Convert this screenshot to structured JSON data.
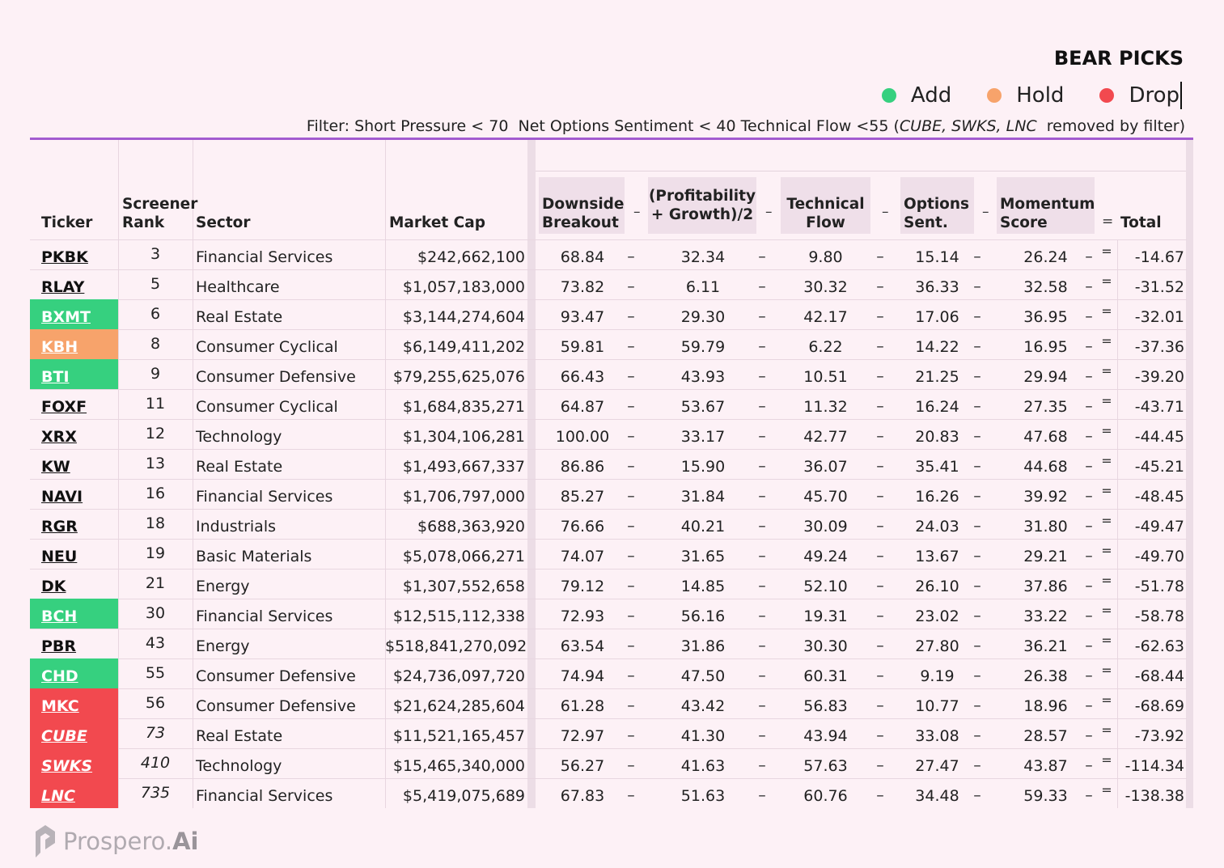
{
  "header": {
    "title": "BEAR PICKS",
    "legend": [
      {
        "label": "Add",
        "color": "#36d07f"
      },
      {
        "label": "Hold",
        "color": "#f7a36b"
      },
      {
        "label": "Drop",
        "color": "#f2494f"
      }
    ],
    "filter_prefix": "Filter: Short Pressure < 70  Net Options Sentiment < 40 Technical Flow <55 (",
    "filter_removed": "CUBE, SWKS, LNC",
    "filter_suffix": "  removed by filter)"
  },
  "columns": {
    "ticker": "Ticker",
    "rank_l1": "Screener",
    "rank_l2": "Rank",
    "sector": "Sector",
    "mcap": "Market Cap",
    "downside_l1": "Downside",
    "downside_l2": "Breakout",
    "profit_l1": "(Profitability",
    "profit_l2": "+ Growth)/2",
    "tech_l1": "Technical",
    "tech_l2": "Flow",
    "options_l1": "Options",
    "options_l2": "Sent.",
    "momentum_l1": "Momentum",
    "momentum_l2": "Score",
    "total": "Total",
    "minus": "–",
    "equals": "="
  },
  "status_colors": {
    "add": "#36d07f",
    "hold": "#f7a36b",
    "drop": "#f2494f"
  },
  "rows": [
    {
      "ticker": "PKBK",
      "status": "none",
      "rank": "3",
      "sector": "Financial Services",
      "mcap": "$242,662,100",
      "downside": "68.84",
      "profit": "32.34",
      "tech": "9.80",
      "options": "15.14",
      "momentum": "26.24",
      "total": "-14.67"
    },
    {
      "ticker": "RLAY",
      "status": "none",
      "rank": "5",
      "sector": "Healthcare",
      "mcap": "$1,057,183,000",
      "downside": "73.82",
      "profit": "6.11",
      "tech": "30.32",
      "options": "36.33",
      "momentum": "32.58",
      "total": "-31.52"
    },
    {
      "ticker": "BXMT",
      "status": "add",
      "rank": "6",
      "sector": "Real Estate",
      "mcap": "$3,144,274,604",
      "downside": "93.47",
      "profit": "29.30",
      "tech": "42.17",
      "options": "17.06",
      "momentum": "36.95",
      "total": "-32.01"
    },
    {
      "ticker": "KBH",
      "status": "hold",
      "rank": "8",
      "sector": "Consumer Cyclical",
      "mcap": "$6,149,411,202",
      "downside": "59.81",
      "profit": "59.79",
      "tech": "6.22",
      "options": "14.22",
      "momentum": "16.95",
      "total": "-37.36"
    },
    {
      "ticker": "BTI",
      "status": "add",
      "rank": "9",
      "sector": "Consumer Defensive",
      "mcap": "$79,255,625,076",
      "downside": "66.43",
      "profit": "43.93",
      "tech": "10.51",
      "options": "21.25",
      "momentum": "29.94",
      "total": "-39.20"
    },
    {
      "ticker": "FOXF",
      "status": "none",
      "rank": "11",
      "sector": "Consumer Cyclical",
      "mcap": "$1,684,835,271",
      "downside": "64.87",
      "profit": "53.67",
      "tech": "11.32",
      "options": "16.24",
      "momentum": "27.35",
      "total": "-43.71"
    },
    {
      "ticker": "XRX",
      "status": "none",
      "rank": "12",
      "sector": "Technology",
      "mcap": "$1,304,106,281",
      "downside": "100.00",
      "profit": "33.17",
      "tech": "42.77",
      "options": "20.83",
      "momentum": "47.68",
      "total": "-44.45"
    },
    {
      "ticker": "KW",
      "status": "none",
      "rank": "13",
      "sector": "Real Estate",
      "mcap": "$1,493,667,337",
      "downside": "86.86",
      "profit": "15.90",
      "tech": "36.07",
      "options": "35.41",
      "momentum": "44.68",
      "total": "-45.21"
    },
    {
      "ticker": "NAVI",
      "status": "none",
      "rank": "16",
      "sector": "Financial Services",
      "mcap": "$1,706,797,000",
      "downside": "85.27",
      "profit": "31.84",
      "tech": "45.70",
      "options": "16.26",
      "momentum": "39.92",
      "total": "-48.45"
    },
    {
      "ticker": "RGR",
      "status": "none",
      "rank": "18",
      "sector": "Industrials",
      "mcap": "$688,363,920",
      "downside": "76.66",
      "profit": "40.21",
      "tech": "30.09",
      "options": "24.03",
      "momentum": "31.80",
      "total": "-49.47"
    },
    {
      "ticker": "NEU",
      "status": "none",
      "rank": "19",
      "sector": "Basic Materials",
      "mcap": "$5,078,066,271",
      "downside": "74.07",
      "profit": "31.65",
      "tech": "49.24",
      "options": "13.67",
      "momentum": "29.21",
      "total": "-49.70"
    },
    {
      "ticker": "DK",
      "status": "none",
      "rank": "21",
      "sector": "Energy",
      "mcap": "$1,307,552,658",
      "downside": "79.12",
      "profit": "14.85",
      "tech": "52.10",
      "options": "26.10",
      "momentum": "37.86",
      "total": "-51.78"
    },
    {
      "ticker": "BCH",
      "status": "add",
      "rank": "30",
      "sector": "Financial Services",
      "mcap": "$12,515,112,338",
      "downside": "72.93",
      "profit": "56.16",
      "tech": "19.31",
      "options": "23.02",
      "momentum": "33.22",
      "total": "-58.78"
    },
    {
      "ticker": "PBR",
      "status": "none",
      "rank": "43",
      "sector": "Energy",
      "mcap": "$518,841,270,092",
      "downside": "63.54",
      "profit": "31.86",
      "tech": "30.30",
      "options": "27.80",
      "momentum": "36.21",
      "total": "-62.63"
    },
    {
      "ticker": "CHD",
      "status": "add",
      "rank": "55",
      "sector": "Consumer Defensive",
      "mcap": "$24,736,097,720",
      "downside": "74.94",
      "profit": "47.50",
      "tech": "60.31",
      "options": "9.19",
      "momentum": "26.38",
      "total": "-68.44"
    },
    {
      "ticker": "MKC",
      "status": "drop",
      "rank": "56",
      "sector": "Consumer Defensive",
      "mcap": "$21,624,285,604",
      "downside": "61.28",
      "profit": "43.42",
      "tech": "56.83",
      "options": "10.77",
      "momentum": "18.96",
      "total": "-68.69"
    },
    {
      "ticker": "CUBE",
      "status": "drop",
      "italic": true,
      "rank": "73",
      "sector": "Real Estate",
      "mcap": "$11,521,165,457",
      "downside": "72.97",
      "profit": "41.30",
      "tech": "43.94",
      "options": "33.08",
      "momentum": "28.57",
      "total": "-73.92"
    },
    {
      "ticker": "SWKS",
      "status": "drop",
      "italic": true,
      "rank": "410",
      "sector": "Technology",
      "mcap": "$15,465,340,000",
      "downside": "56.27",
      "profit": "41.63",
      "tech": "57.63",
      "options": "27.47",
      "momentum": "43.87",
      "total": "-114.34"
    },
    {
      "ticker": "LNC",
      "status": "drop",
      "italic": true,
      "rank": "735",
      "sector": "Financial Services",
      "mcap": "$5,419,075,689",
      "downside": "67.83",
      "profit": "51.63",
      "tech": "60.76",
      "options": "34.48",
      "momentum": "59.33",
      "total": "-138.38"
    }
  ],
  "brand": {
    "name": "Prospero.",
    "suffix": "Ai"
  }
}
